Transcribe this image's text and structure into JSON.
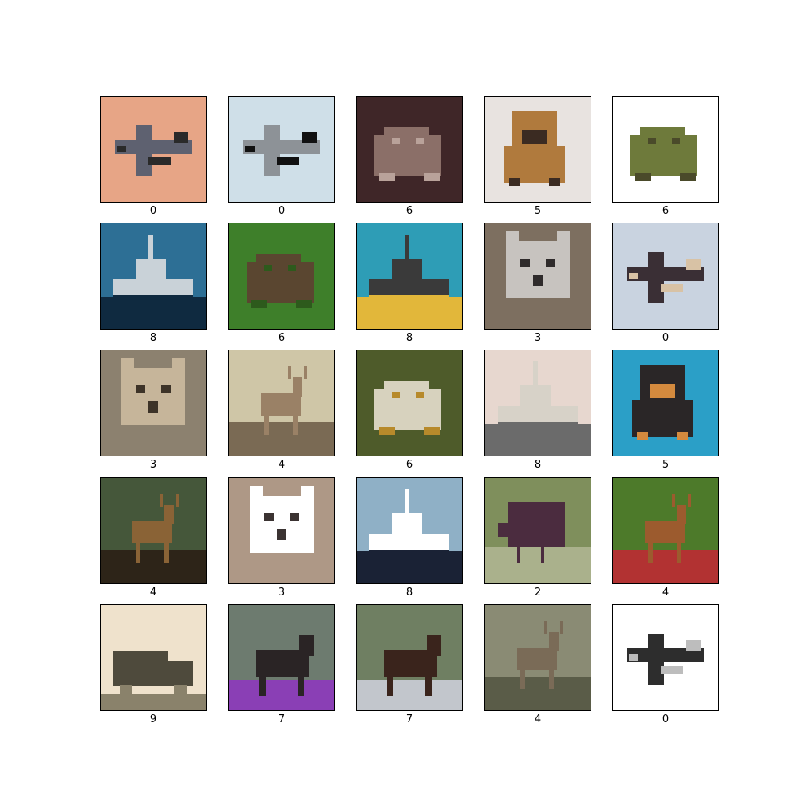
{
  "figure": {
    "columns": 5,
    "rows": 5,
    "panels": [
      {
        "label": "0",
        "subject": "airplane",
        "colors": {
          "bg": "#e7a586",
          "main": "#5e6170",
          "accent": "#2a2a2a"
        }
      },
      {
        "label": "0",
        "subject": "airplane",
        "colors": {
          "bg": "#cfdfe8",
          "main": "#8d9297",
          "accent": "#111111"
        }
      },
      {
        "label": "6",
        "subject": "frog",
        "colors": {
          "bg": "#3f2628",
          "main": "#8b6f68",
          "accent": "#b9a29a"
        }
      },
      {
        "label": "5",
        "subject": "dog",
        "colors": {
          "bg": "#e8e3e0",
          "main": "#b07a3d",
          "accent": "#3b2b22"
        }
      },
      {
        "label": "6",
        "subject": "frog",
        "colors": {
          "bg": "#ffffff",
          "main": "#6e7a3b",
          "accent": "#4a4a2a"
        }
      },
      {
        "label": "8",
        "subject": "ship",
        "colors": {
          "bg": "#2d6f95",
          "main": "#c9d2d8",
          "accent": "#0f2a40"
        }
      },
      {
        "label": "6",
        "subject": "frog",
        "colors": {
          "bg": "#3e7f2a",
          "main": "#5a4630",
          "accent": "#2d5a1c"
        }
      },
      {
        "label": "8",
        "subject": "ship",
        "colors": {
          "bg": "#2e9db6",
          "main": "#3a3a3a",
          "accent": "#e2b73a"
        }
      },
      {
        "label": "3",
        "subject": "cat",
        "colors": {
          "bg": "#7d6f60",
          "main": "#c7c3bf",
          "accent": "#2f2b2b"
        }
      },
      {
        "label": "0",
        "subject": "airplane",
        "colors": {
          "bg": "#c9d3e0",
          "main": "#3a2f35",
          "accent": "#d8c2a5"
        }
      },
      {
        "label": "3",
        "subject": "cat",
        "colors": {
          "bg": "#8c816f",
          "main": "#c6b59a",
          "accent": "#3d3328"
        }
      },
      {
        "label": "4",
        "subject": "deer",
        "colors": {
          "bg": "#cfc6a7",
          "main": "#9a8166",
          "accent": "#7a6a54"
        }
      },
      {
        "label": "6",
        "subject": "frog",
        "colors": {
          "bg": "#4e5b2a",
          "main": "#d7d2be",
          "accent": "#b78a2b"
        }
      },
      {
        "label": "8",
        "subject": "ship",
        "colors": {
          "bg": "#e7d7cf",
          "main": "#d7d2c8",
          "accent": "#6b6b6b"
        }
      },
      {
        "label": "5",
        "subject": "dog",
        "colors": {
          "bg": "#2b9fc7",
          "main": "#2a2627",
          "accent": "#d48a3e"
        }
      },
      {
        "label": "4",
        "subject": "deer",
        "colors": {
          "bg": "#45573a",
          "main": "#8a6336",
          "accent": "#2d2418"
        }
      },
      {
        "label": "3",
        "subject": "cat",
        "colors": {
          "bg": "#ae9886",
          "main": "#ffffff",
          "accent": "#3b3332"
        }
      },
      {
        "label": "8",
        "subject": "ship",
        "colors": {
          "bg": "#8fb0c6",
          "main": "#ffffff",
          "accent": "#1a2235"
        }
      },
      {
        "label": "2",
        "subject": "bird",
        "colors": {
          "bg": "#7f8f5c",
          "main": "#4b2c3f",
          "accent": "#aab18c"
        }
      },
      {
        "label": "4",
        "subject": "deer",
        "colors": {
          "bg": "#4d7a2a",
          "main": "#9c5b2e",
          "accent": "#b23232"
        }
      },
      {
        "label": "9",
        "subject": "truck",
        "colors": {
          "bg": "#efe2cc",
          "main": "#4e4a3c",
          "accent": "#8a826b"
        }
      },
      {
        "label": "7",
        "subject": "horse",
        "colors": {
          "bg": "#6d7b6f",
          "main": "#2a2425",
          "accent": "#8a3fb5"
        }
      },
      {
        "label": "7",
        "subject": "horse",
        "colors": {
          "bg": "#6f7f62",
          "main": "#3a241c",
          "accent": "#c2c6cc"
        }
      },
      {
        "label": "4",
        "subject": "deer",
        "colors": {
          "bg": "#8a8b74",
          "main": "#7a6b57",
          "accent": "#5a5c48"
        }
      },
      {
        "label": "0",
        "subject": "airplane",
        "colors": {
          "bg": "#ffffff",
          "main": "#2d2d2d",
          "accent": "#bdbdbd"
        }
      }
    ]
  }
}
